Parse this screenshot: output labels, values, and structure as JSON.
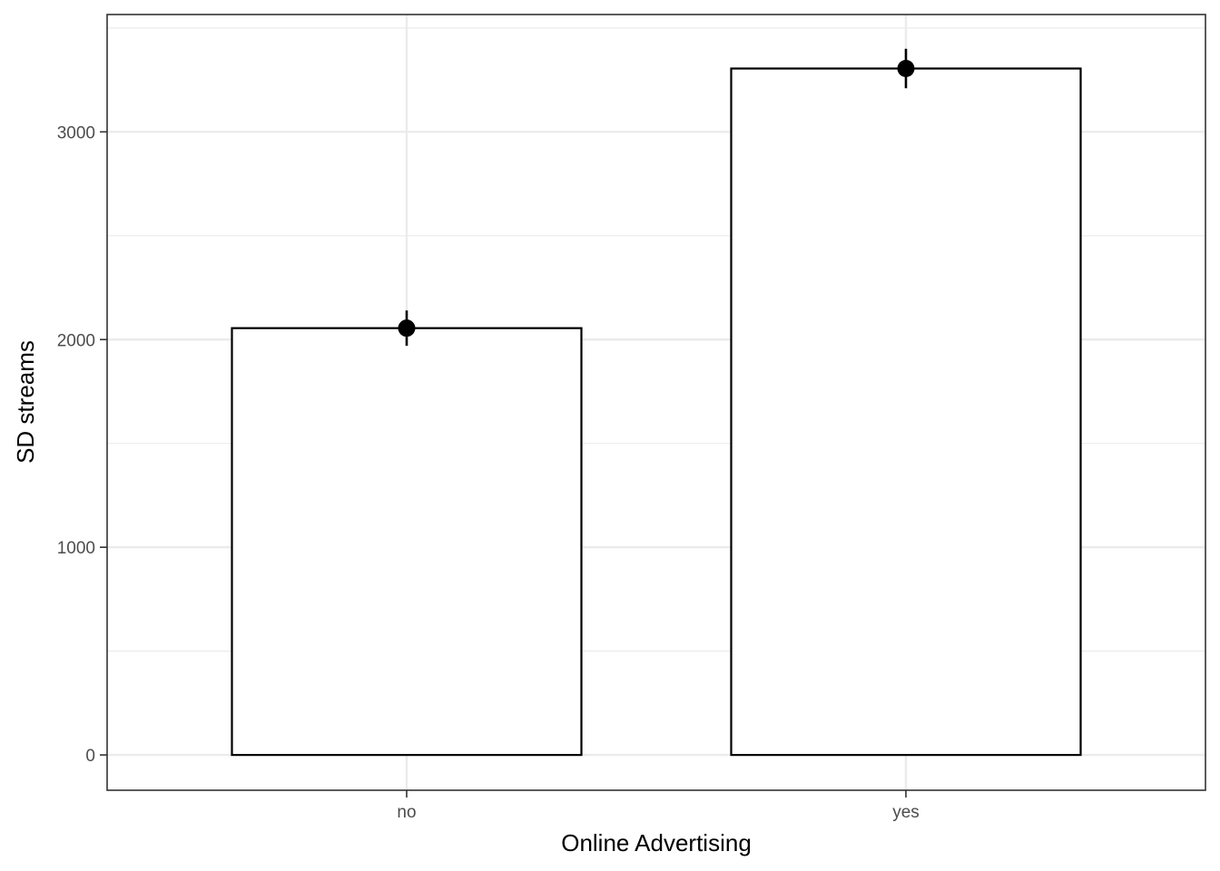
{
  "chart_data": {
    "type": "bar",
    "title": "",
    "xlabel": "Online Advertising",
    "ylabel": "SD streams",
    "categories": [
      "no",
      "yes"
    ],
    "values": [
      2055,
      3305
    ],
    "error_bars": [
      {
        "category": "no",
        "mean": 2055,
        "lower": 1970,
        "upper": 2140
      },
      {
        "category": "yes",
        "mean": 3305,
        "lower": 3210,
        "upper": 3400
      }
    ],
    "ylim": [
      -170,
      3565
    ],
    "y_ticks": [
      0,
      1000,
      2000,
      3000
    ],
    "y_tick_labels": [
      "0",
      "1000",
      "2000",
      "3000"
    ],
    "y_minor_ticks": [
      500,
      1500,
      2500,
      3500
    ],
    "grid": true,
    "legend": "none",
    "colors": {
      "bar_fill": "#ffffff",
      "bar_outline": "#000000",
      "point": "#000000",
      "grid": "#ebebeb",
      "panel_border": "#333333"
    }
  }
}
